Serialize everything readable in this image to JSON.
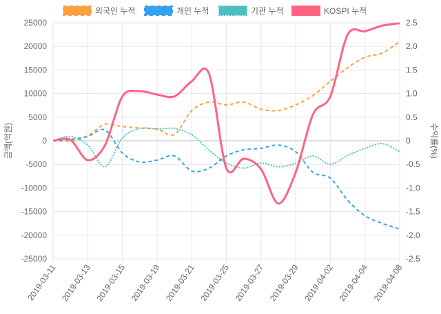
{
  "chart_data": {
    "type": "line",
    "title": "",
    "x": [
      "2019-03-11",
      "2019-03-12",
      "2019-03-13",
      "2019-03-14",
      "2019-03-15",
      "2019-03-18",
      "2019-03-19",
      "2019-03-20",
      "2019-03-21",
      "2019-03-22",
      "2019-03-25",
      "2019-03-26",
      "2019-03-27",
      "2019-03-28",
      "2019-03-29",
      "2019-04-01",
      "2019-04-02",
      "2019-04-03",
      "2019-04-04",
      "2019-04-05",
      "2019-04-08"
    ],
    "x_tick_labels": [
      "2019-03-11",
      "2019-03-13",
      "2019-03-15",
      "2019-03-19",
      "2019-03-21",
      "2019-03-25",
      "2019-03-27",
      "2019-03-29",
      "2019-04-02",
      "2019-04-04",
      "2019-04-08"
    ],
    "ylabel": "금액(억원)",
    "y2label": "수익률(%)",
    "ylim": [
      -25000,
      25000
    ],
    "y2lim": [
      -2.5,
      2.5
    ],
    "y_ticks": [
      "25000",
      "20000",
      "15000",
      "10000",
      "5000",
      "0",
      "-5000",
      "-10000",
      "-15000",
      "-20000",
      "-25000"
    ],
    "y2_ticks": [
      "2.5",
      "2.0",
      "1.5",
      "1.0",
      "0.5",
      "0",
      "-0.5",
      "-1.0",
      "-1.5",
      "-2.0",
      "-2.5"
    ],
    "grid": true,
    "legend_position": "top",
    "series": [
      {
        "name": "외국인 누적",
        "axis": "left",
        "color": "#ff9f40",
        "style": "dashed",
        "values": [
          0,
          0,
          1100,
          3500,
          3000,
          2700,
          2500,
          1300,
          6400,
          8200,
          7600,
          8200,
          6700,
          6400,
          7600,
          9600,
          12600,
          15500,
          17700,
          18600,
          21000
        ]
      },
      {
        "name": "개인 누적",
        "axis": "left",
        "color": "#36a2eb",
        "style": "dashed",
        "values": [
          0,
          300,
          900,
          2300,
          -2600,
          -4500,
          -4100,
          -3200,
          -6400,
          -5800,
          -3200,
          -1900,
          -1600,
          -900,
          -2300,
          -6700,
          -7900,
          -12600,
          -15900,
          -17500,
          -18700
        ]
      },
      {
        "name": "기관 누적",
        "axis": "left",
        "color": "#4bc0c0",
        "style": "dotted",
        "values": [
          0,
          900,
          -900,
          -5500,
          600,
          2600,
          2500,
          2600,
          1300,
          -2000,
          -4700,
          -5800,
          -4700,
          -5500,
          -4800,
          -3200,
          -5000,
          -3100,
          -1600,
          -600,
          -2300
        ]
      },
      {
        "name": "KOSPI 누적",
        "axis": "right",
        "color": "#ff6384",
        "style": "solid",
        "values": [
          0,
          0.02,
          -0.41,
          -0.09,
          0.94,
          1.05,
          0.98,
          0.94,
          1.26,
          1.42,
          -0.58,
          -0.38,
          -0.6,
          -1.33,
          -0.67,
          0.56,
          0.94,
          2.25,
          2.32,
          2.44,
          2.49
        ]
      }
    ]
  }
}
